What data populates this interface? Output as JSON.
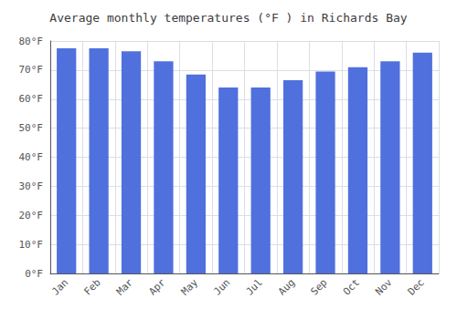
{
  "chart_data": {
    "type": "bar",
    "title": "Average monthly temperatures (°F ) in Richards Bay",
    "categories": [
      "Jan",
      "Feb",
      "Mar",
      "Apr",
      "May",
      "Jun",
      "Jul",
      "Aug",
      "Sep",
      "Oct",
      "Nov",
      "Dec"
    ],
    "values": [
      77.5,
      77.5,
      76.5,
      73.0,
      68.5,
      64.0,
      64.0,
      66.5,
      69.5,
      71.0,
      73.0,
      76.0
    ],
    "ylim": [
      0,
      80
    ],
    "yticks": [
      {
        "value": 0,
        "label": "0°F"
      },
      {
        "value": 10,
        "label": "10°F"
      },
      {
        "value": 20,
        "label": "20°F"
      },
      {
        "value": 30,
        "label": "30°F"
      },
      {
        "value": 40,
        "label": "40°F"
      },
      {
        "value": 50,
        "label": "50°F"
      },
      {
        "value": 60,
        "label": "60°F"
      },
      {
        "value": 70,
        "label": "70°F"
      },
      {
        "value": 80,
        "label": "80°F"
      }
    ],
    "grid": true
  }
}
